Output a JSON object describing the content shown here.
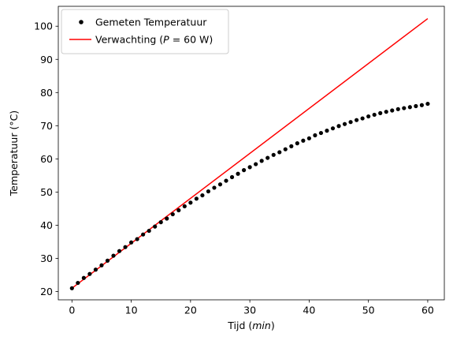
{
  "chart_data": {
    "type": "line",
    "xlabel_main": "Tijd (",
    "xlabel_unit": "min",
    "xlabel_close": ")",
    "ylabel": "Temperatuur (°C)",
    "xlim": [
      -2.3,
      62.8
    ],
    "ylim": [
      17.5,
      106.0
    ],
    "xticks": [
      0,
      10,
      20,
      30,
      40,
      50,
      60
    ],
    "yticks": [
      20,
      30,
      40,
      50,
      60,
      70,
      80,
      90,
      100
    ],
    "grid": false,
    "legend_position": "top-left",
    "series": [
      {
        "name": "Gemeten Temperatuur",
        "style": "points",
        "color": "#000000",
        "x": [
          0,
          1,
          2,
          3,
          4,
          5,
          6,
          7,
          8,
          9,
          10,
          11,
          12,
          13,
          14,
          15,
          16,
          17,
          18,
          19,
          20,
          21,
          22,
          23,
          24,
          25,
          26,
          27,
          28,
          29,
          30,
          31,
          32,
          33,
          34,
          35,
          36,
          37,
          38,
          39,
          40,
          41,
          42,
          43,
          44,
          45,
          46,
          47,
          48,
          49,
          50,
          51,
          52,
          53,
          54,
          55,
          56,
          57,
          58,
          59,
          60
        ],
        "y": [
          21.0,
          22.6,
          24.1,
          25.3,
          26.6,
          27.9,
          29.3,
          30.8,
          32.2,
          33.4,
          34.8,
          35.8,
          37.2,
          38.3,
          39.6,
          40.9,
          42.0,
          43.3,
          44.5,
          45.7,
          46.8,
          48.0,
          49.0,
          50.2,
          51.3,
          52.3,
          53.4,
          54.5,
          55.5,
          56.6,
          57.5,
          58.4,
          59.4,
          60.3,
          61.2,
          62.0,
          62.9,
          63.8,
          64.7,
          65.5,
          66.2,
          67.1,
          67.8,
          68.5,
          69.2,
          69.9,
          70.5,
          71.1,
          71.7,
          72.2,
          72.8,
          73.3,
          73.8,
          74.2,
          74.6,
          75.0,
          75.3,
          75.6,
          75.9,
          76.2,
          76.6
        ]
      },
      {
        "name_main": "Verwachting (",
        "name_var": "P",
        "name_rest": " = 60 W)",
        "style": "line",
        "color": "#ff0000",
        "x": [
          0,
          60
        ],
        "y": [
          21.0,
          102.3
        ]
      }
    ]
  }
}
